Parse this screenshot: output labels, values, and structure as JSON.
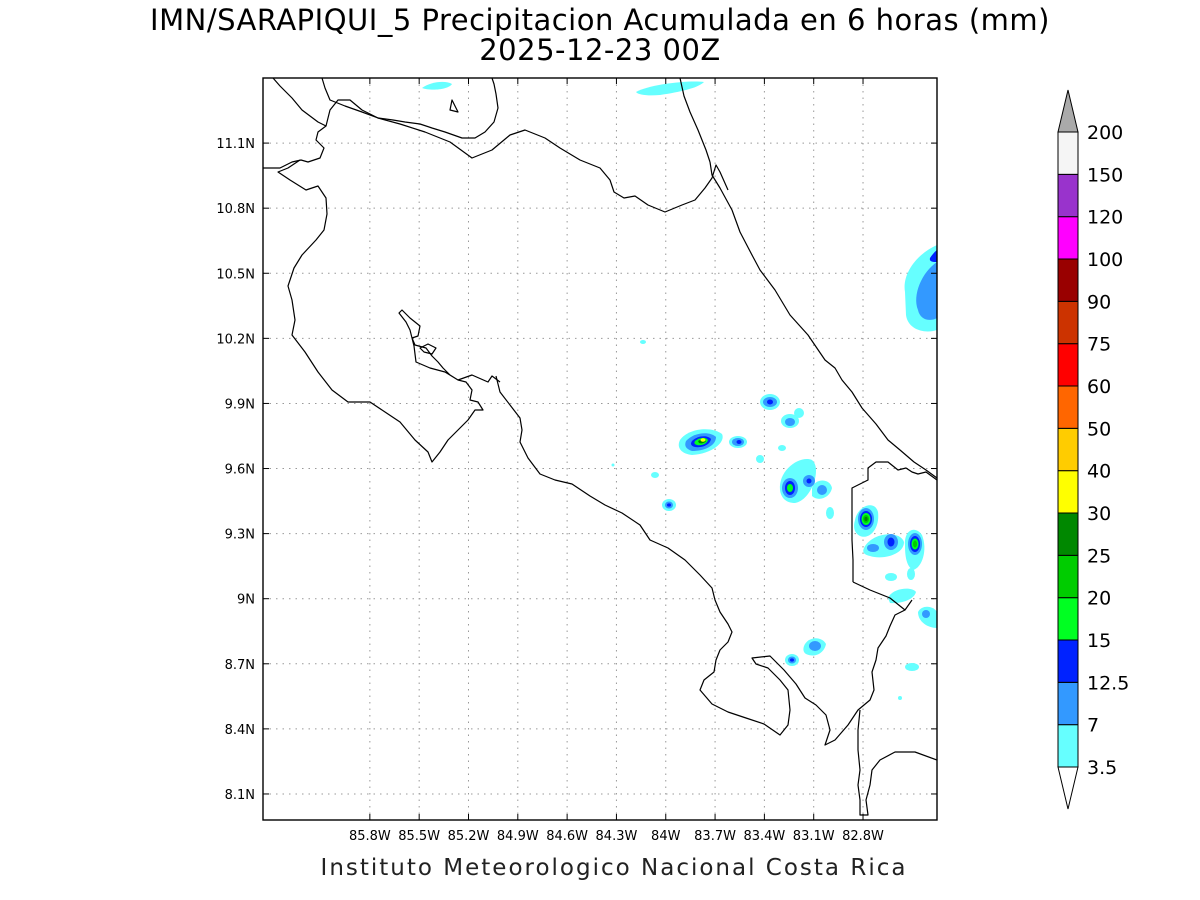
{
  "title": {
    "line1": "IMN/SARAPIQUI_5 Precipitacion Acumulada en 6 horas (mm)",
    "line2": "2025-12-23 00Z"
  },
  "credit": "Instituto Meteorologico Nacional Costa Rica",
  "map": {
    "lon_range": [
      -86.45,
      -82.35
    ],
    "lat_range": [
      7.98,
      11.4
    ],
    "x_ticks": [
      "85.8W",
      "85.5W",
      "85.2W",
      "84.9W",
      "84.6W",
      "84.3W",
      "84W",
      "83.7W",
      "83.4W",
      "83.1W",
      "82.8W"
    ],
    "x_tick_values": [
      -85.8,
      -85.5,
      -85.2,
      -84.9,
      -84.6,
      -84.3,
      -84.0,
      -83.7,
      -83.4,
      -83.1,
      -82.8
    ],
    "y_ticks": [
      "8.1N",
      "8.4N",
      "8.7N",
      "9N",
      "9.3N",
      "9.6N",
      "9.9N",
      "10.2N",
      "10.5N",
      "10.8N",
      "11.1N"
    ],
    "y_tick_values": [
      8.1,
      8.4,
      8.7,
      9.0,
      9.3,
      9.6,
      9.9,
      10.2,
      10.5,
      10.8,
      11.1
    ],
    "grid": "dotted"
  },
  "colorbar": {
    "labels": [
      "3.5",
      "7",
      "12.5",
      "15",
      "20",
      "25",
      "30",
      "40",
      "50",
      "60",
      "75",
      "90",
      "100",
      "120",
      "150",
      "200"
    ],
    "colors": [
      "#66ffff",
      "#3399ff",
      "#0022ff",
      "#00ff22",
      "#00cc00",
      "#008800",
      "#ffff00",
      "#ffcc00",
      "#ff6600",
      "#ff0000",
      "#cc3300",
      "#990000",
      "#ff00ff",
      "#9933cc",
      "#f5f5f5",
      "#aaaaaa"
    ],
    "bottom_arrow_color": "#ffffff",
    "top_arrow_color": "#aaaaaa"
  },
  "precip_cells": [
    {
      "lon": -83.72,
      "lat": 9.69,
      "levels": [
        3.5,
        7,
        12.5,
        15,
        20,
        25,
        30
      ]
    },
    {
      "lon": -83.55,
      "lat": 9.68,
      "levels": [
        3.5,
        7,
        12.5
      ]
    },
    {
      "lon": -83.38,
      "lat": 9.86,
      "levels": [
        3.5,
        7,
        12.5
      ]
    },
    {
      "lon": -83.25,
      "lat": 9.79,
      "levels": [
        3.5,
        7
      ]
    },
    {
      "lon": -83.23,
      "lat": 9.47,
      "levels": [
        3.5,
        7,
        12.5,
        15
      ]
    },
    {
      "lon": -83.12,
      "lat": 9.5,
      "levels": [
        3.5,
        7,
        12.5
      ]
    },
    {
      "lon": -83.06,
      "lat": 9.45,
      "levels": [
        3.5,
        7
      ]
    },
    {
      "lon": -83.88,
      "lat": 9.39,
      "levels": [
        3.5,
        7,
        12.5
      ]
    },
    {
      "lon": -82.85,
      "lat": 9.34,
      "levels": [
        3.5,
        7,
        12.5,
        15,
        20,
        25
      ]
    },
    {
      "lon": -82.74,
      "lat": 9.23,
      "levels": [
        3.5,
        7,
        12.5
      ]
    },
    {
      "lon": -82.63,
      "lat": 9.22,
      "levels": [
        3.5,
        7,
        12.5,
        15,
        20
      ]
    },
    {
      "lon": -83.12,
      "lat": 8.77,
      "levels": [
        3.5,
        7
      ]
    },
    {
      "lon": -83.2,
      "lat": 8.71,
      "levels": [
        3.5,
        7,
        12.5
      ]
    },
    {
      "lon": -82.48,
      "lat": 10.4,
      "levels": [
        3.5,
        7
      ]
    },
    {
      "lon": -82.58,
      "lat": 8.9,
      "levels": [
        3.5,
        7
      ]
    }
  ]
}
